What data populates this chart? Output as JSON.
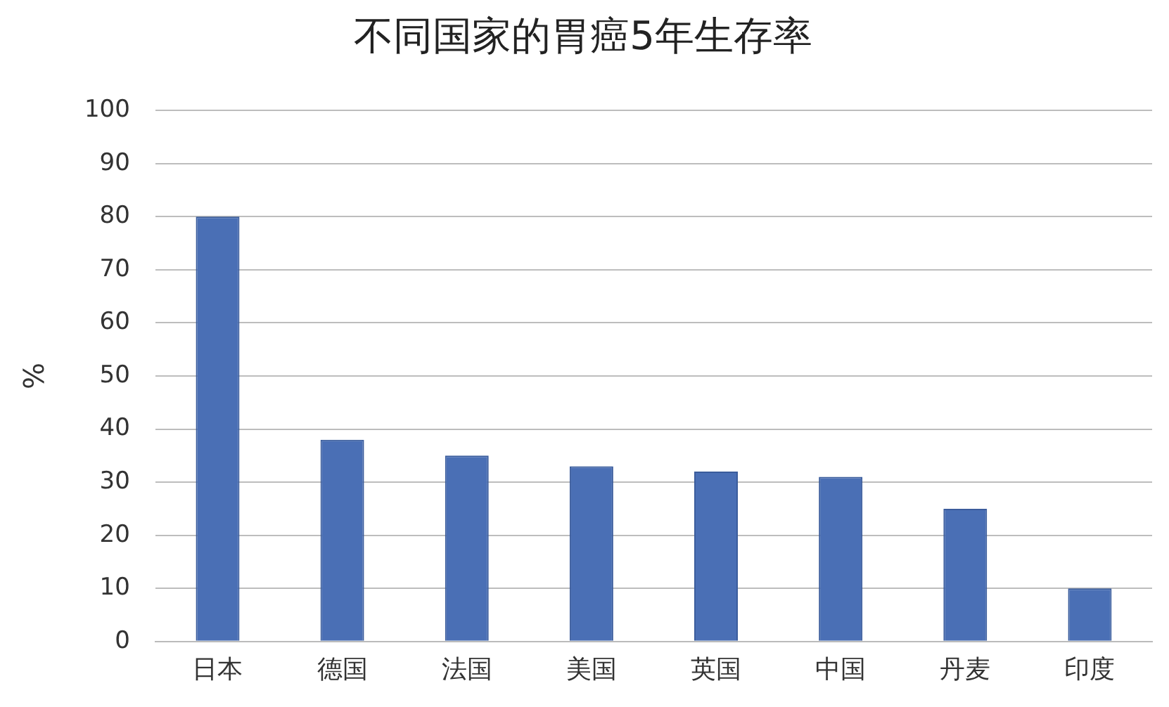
{
  "chart_data": {
    "type": "bar",
    "title": "不同国家的胃癌5年生存率",
    "ylabel": "%",
    "categories": [
      "日本",
      "德国",
      "法国",
      "美国",
      "英国",
      "中国",
      "丹麦",
      "印度"
    ],
    "values": [
      80,
      38,
      35,
      33,
      32,
      31,
      25,
      10
    ],
    "color": "#4a6fb5",
    "ylim": [
      0,
      100
    ],
    "yticks": [
      0,
      10,
      20,
      30,
      40,
      50,
      60,
      70,
      80,
      90,
      100
    ],
    "grid": "y",
    "legend": false
  }
}
